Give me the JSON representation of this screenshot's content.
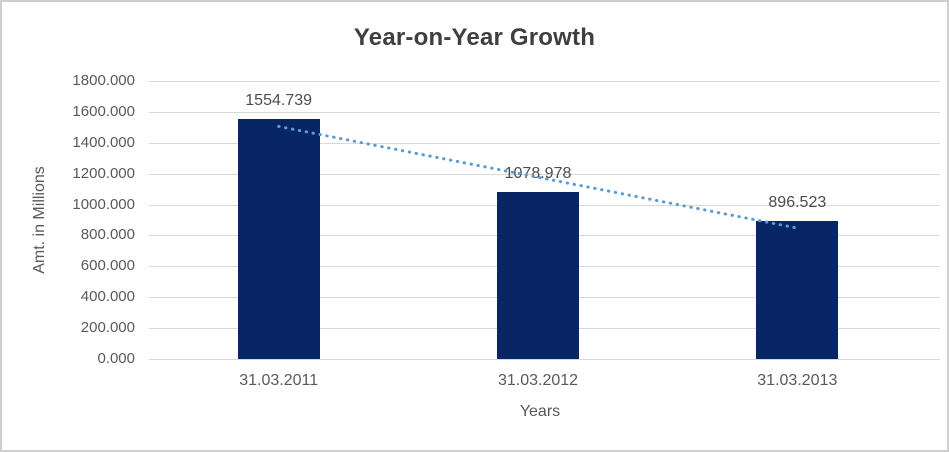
{
  "chart_data": {
    "type": "bar",
    "title": "Year-on-Year Growth",
    "xlabel": "Years",
    "ylabel": "Amt. in Millions",
    "categories": [
      "31.03.2011",
      "31.03.2012",
      "31.03.2013"
    ],
    "values": [
      1554.739,
      1078.978,
      896.523
    ],
    "data_labels": [
      "1554.739",
      "1078.978",
      "896.523"
    ],
    "y_ticks": [
      "1800.000",
      "1600.000",
      "1400.000",
      "1200.000",
      "1000.000",
      "800.000",
      "600.000",
      "400.000",
      "200.000",
      "0.000"
    ],
    "ylim": [
      0,
      1800
    ],
    "y_tick_step": 200,
    "grid": true,
    "legend": "none",
    "bar_color": "#082664",
    "gridline_color": "#d9d9d9",
    "axis_text_color": "#595959",
    "data_label_color": "#4d4d4d",
    "title_color": "#3f3f3f",
    "frame_border_color": "#cfcfcf",
    "trendline": {
      "type": "linear",
      "style": "dotted",
      "color": "#5B9BD5"
    }
  }
}
